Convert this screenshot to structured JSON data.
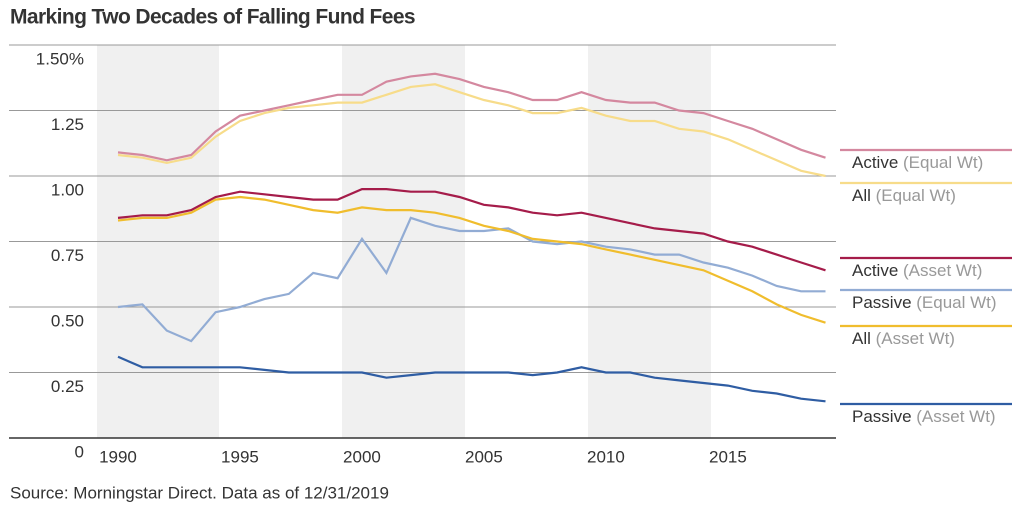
{
  "chart_data": {
    "type": "line",
    "title": "Marking Two Decades of Falling Fund Fees",
    "source": "Source: Morningstar Direct. Data as of 12/31/2019",
    "x": [
      1990,
      1991,
      1992,
      1993,
      1994,
      1995,
      1996,
      1997,
      1998,
      1999,
      2000,
      2001,
      2002,
      2003,
      2004,
      2005,
      2006,
      2007,
      2008,
      2009,
      2010,
      2011,
      2012,
      2013,
      2014,
      2015,
      2016,
      2017,
      2018,
      2019
    ],
    "xlim": [
      1989.14,
      2019.43
    ],
    "xticks": [
      1990,
      1995,
      2000,
      2005,
      2010,
      2015
    ],
    "ylim": [
      0,
      1.5
    ],
    "yticks": [
      0,
      {
        "value": 0.25,
        "label": "0.25"
      },
      {
        "value": 0.5,
        "label": "0.50"
      },
      {
        "value": 0.75,
        "label": "0.75"
      },
      {
        "value": 1,
        "label": "1.00"
      },
      {
        "value": 1.25,
        "label": "1.25"
      },
      {
        "value": 1.5,
        "label": "1.50%"
      }
    ],
    "grid": true,
    "series": [
      {
        "name": "Active (Equal Wt)",
        "color": "#d4889f",
        "values": [
          1.09,
          1.08,
          1.06,
          1.08,
          1.17,
          1.23,
          1.25,
          1.27,
          1.29,
          1.31,
          1.31,
          1.36,
          1.38,
          1.39,
          1.37,
          1.34,
          1.32,
          1.29,
          1.29,
          1.32,
          1.29,
          1.28,
          1.28,
          1.25,
          1.24,
          1.21,
          1.18,
          1.14,
          1.1,
          1.07
        ]
      },
      {
        "name": "All (Equal Wt)",
        "color": "#f7dc8a",
        "values": [
          1.08,
          1.07,
          1.05,
          1.07,
          1.15,
          1.21,
          1.24,
          1.26,
          1.27,
          1.28,
          1.28,
          1.31,
          1.34,
          1.35,
          1.32,
          1.29,
          1.27,
          1.24,
          1.24,
          1.26,
          1.23,
          1.21,
          1.21,
          1.18,
          1.17,
          1.14,
          1.1,
          1.06,
          1.02,
          1.0
        ]
      },
      {
        "name": "Active (Asset Wt)",
        "color": "#a51c4a",
        "values": [
          0.84,
          0.85,
          0.85,
          0.87,
          0.92,
          0.94,
          0.93,
          0.92,
          0.91,
          0.91,
          0.95,
          0.95,
          0.94,
          0.94,
          0.92,
          0.89,
          0.88,
          0.86,
          0.85,
          0.86,
          0.84,
          0.82,
          0.8,
          0.79,
          0.78,
          0.75,
          0.73,
          0.7,
          0.67,
          0.64
        ]
      },
      {
        "name": "Passive (Equal Wt)",
        "color": "#92acd4",
        "values": [
          0.5,
          0.51,
          0.41,
          0.37,
          0.48,
          0.5,
          0.53,
          0.55,
          0.63,
          0.61,
          0.76,
          0.63,
          0.84,
          0.81,
          0.79,
          0.79,
          0.8,
          0.75,
          0.74,
          0.75,
          0.73,
          0.72,
          0.7,
          0.7,
          0.67,
          0.65,
          0.62,
          0.58,
          0.56,
          0.56
        ]
      },
      {
        "name": "All (Asset Wt)",
        "color": "#f0bd2d",
        "values": [
          0.83,
          0.84,
          0.84,
          0.86,
          0.91,
          0.92,
          0.91,
          0.89,
          0.87,
          0.86,
          0.88,
          0.87,
          0.87,
          0.86,
          0.84,
          0.81,
          0.79,
          0.76,
          0.75,
          0.74,
          0.72,
          0.7,
          0.68,
          0.66,
          0.64,
          0.6,
          0.56,
          0.51,
          0.47,
          0.44
        ]
      },
      {
        "name": "Passive (Asset Wt)",
        "color": "#2f5da3",
        "values": [
          0.31,
          0.27,
          0.27,
          0.27,
          0.27,
          0.27,
          0.26,
          0.25,
          0.25,
          0.25,
          0.25,
          0.23,
          0.24,
          0.25,
          0.25,
          0.25,
          0.25,
          0.24,
          0.25,
          0.27,
          0.25,
          0.25,
          0.23,
          0.22,
          0.21,
          0.2,
          0.18,
          0.17,
          0.15,
          0.14
        ]
      }
    ]
  }
}
